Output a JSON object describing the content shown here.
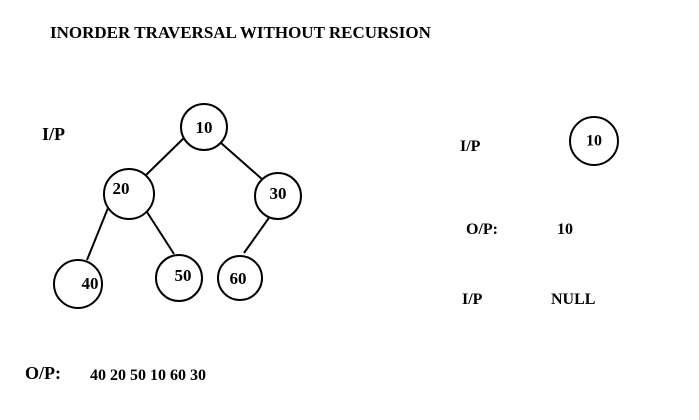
{
  "title": "INORDER TRAVERSAL WITHOUT RECURSION",
  "example1": {
    "input_label": "I/P",
    "output_label": "O/P:",
    "output_value": "40 20 50 10 60 30",
    "tree": {
      "nodes": [
        {
          "id": "n10",
          "label": "10"
        },
        {
          "id": "n20",
          "label": "20"
        },
        {
          "id": "n30",
          "label": "30"
        },
        {
          "id": "n40",
          "label": "40"
        },
        {
          "id": "n50",
          "label": "50"
        },
        {
          "id": "n60",
          "label": "60"
        }
      ],
      "edges": [
        {
          "from": "n10",
          "to": "n20"
        },
        {
          "from": "n10",
          "to": "n30"
        },
        {
          "from": "n20",
          "to": "n40"
        },
        {
          "from": "n20",
          "to": "n50"
        },
        {
          "from": "n30",
          "to": "n60"
        }
      ]
    }
  },
  "example2": {
    "input_label": "I/P",
    "node_label": "10",
    "output_label": "O/P:",
    "output_value": "10"
  },
  "example3": {
    "input_label": "I/P",
    "value": "NULL"
  }
}
